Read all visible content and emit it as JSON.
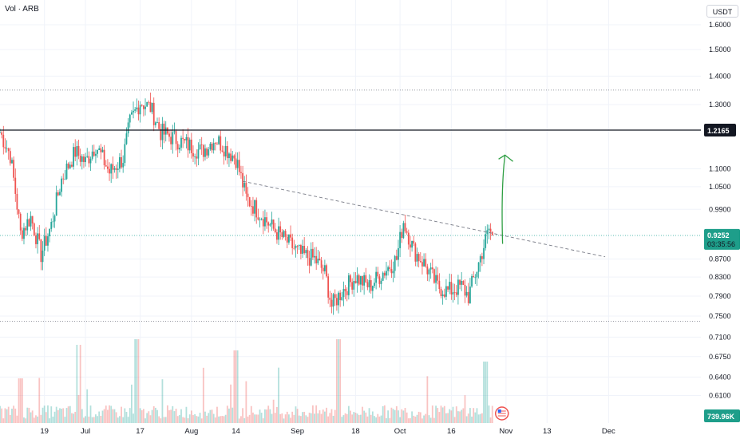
{
  "header": {
    "symbol_label": "Vol · ARB",
    "unit_label": "USDT"
  },
  "colors": {
    "up": "#26a69a",
    "down": "#ef5350",
    "grid": "#f0f3fa",
    "resistance": "#131722",
    "trend": "#787b86",
    "arrow": "#2e9e43",
    "price_badge": "#1e9e8a"
  },
  "icons": {
    "earnings_marker": "us-flag-icon",
    "up_arrow": "curved-arrow-icon"
  },
  "chart_data": {
    "type": "candlestick",
    "y_scale": "log",
    "y_ticks": [
      "1.6000",
      "1.5000",
      "1.4000",
      "1.3000",
      "1.1000",
      "1.0500",
      "0.9900",
      "0.8700",
      "0.8300",
      "0.7900",
      "0.7500",
      "0.7100",
      "0.6750",
      "0.6400",
      "0.6100"
    ],
    "x_ticks": [
      "19",
      "Jul",
      "17",
      "Aug",
      "14",
      "Sep",
      "18",
      "Oct",
      "16",
      "Nov",
      "13",
      "Dec"
    ],
    "resistance_level": {
      "label": "1.2165",
      "value": 1.2165
    },
    "current_price": {
      "label": "0.9252",
      "value": 0.9252,
      "countdown": "03:35:56"
    },
    "volume_badge": "739.96K",
    "dotted_levels": [
      1.35,
      0.925,
      0.74
    ],
    "trendline": {
      "from": [
        "Aug 16",
        1.065
      ],
      "to": [
        "Nov 30",
        0.875
      ]
    },
    "path_points": [
      [
        "Jun 6",
        1.21
      ],
      [
        "Jun 9",
        1.14
      ],
      [
        "Jun 12",
        0.93
      ],
      [
        "Jun 15",
        0.97
      ],
      [
        "Jun 18",
        0.88
      ],
      [
        "Jun 21",
        0.95
      ],
      [
        "Jun 24",
        1.07
      ],
      [
        "Jun 28",
        1.15
      ],
      [
        "Jul 1",
        1.12
      ],
      [
        "Jul 4",
        1.17
      ],
      [
        "Jul 8",
        1.09
      ],
      [
        "Jul 12",
        1.13
      ],
      [
        "Jul 14",
        1.24
      ],
      [
        "Jul 17",
        1.31
      ],
      [
        "Jul 20",
        1.29
      ],
      [
        "Jul 23",
        1.21
      ],
      [
        "Jul 27",
        1.19
      ],
      [
        "Jul 31",
        1.17
      ],
      [
        "Aug 4",
        1.15
      ],
      [
        "Aug 8",
        1.19
      ],
      [
        "Aug 14",
        1.13
      ],
      [
        "Aug 17",
        1.02
      ],
      [
        "Aug 21",
        0.98
      ],
      [
        "Aug 25",
        0.94
      ],
      [
        "Aug 29",
        0.91
      ],
      [
        "Sep 2",
        0.88
      ],
      [
        "Sep 6",
        0.87
      ],
      [
        "Sep 9",
        0.84
      ],
      [
        "Sep 11",
        0.77
      ],
      [
        "Sep 14",
        0.8
      ],
      [
        "Sep 18",
        0.83
      ],
      [
        "Sep 22",
        0.81
      ],
      [
        "Sep 26",
        0.84
      ],
      [
        "Sep 30",
        0.87
      ],
      [
        "Oct 2",
        0.96
      ],
      [
        "Oct 5",
        0.89
      ],
      [
        "Oct 8",
        0.86
      ],
      [
        "Oct 12",
        0.81
      ],
      [
        "Oct 15",
        0.8
      ],
      [
        "Oct 19",
        0.81
      ],
      [
        "Oct 21",
        0.79
      ],
      [
        "Oct 24",
        0.86
      ],
      [
        "Oct 27",
        0.94
      ],
      [
        "Oct 28",
        0.9252
      ]
    ],
    "volume_spikes": [
      [
        "Jun 12",
        0.4
      ],
      [
        "Jun 29",
        0.7
      ],
      [
        "Jul 16",
        0.75
      ],
      [
        "Aug 14",
        0.65
      ],
      [
        "Sep 13",
        0.75
      ],
      [
        "Oct 26",
        0.55
      ]
    ]
  }
}
